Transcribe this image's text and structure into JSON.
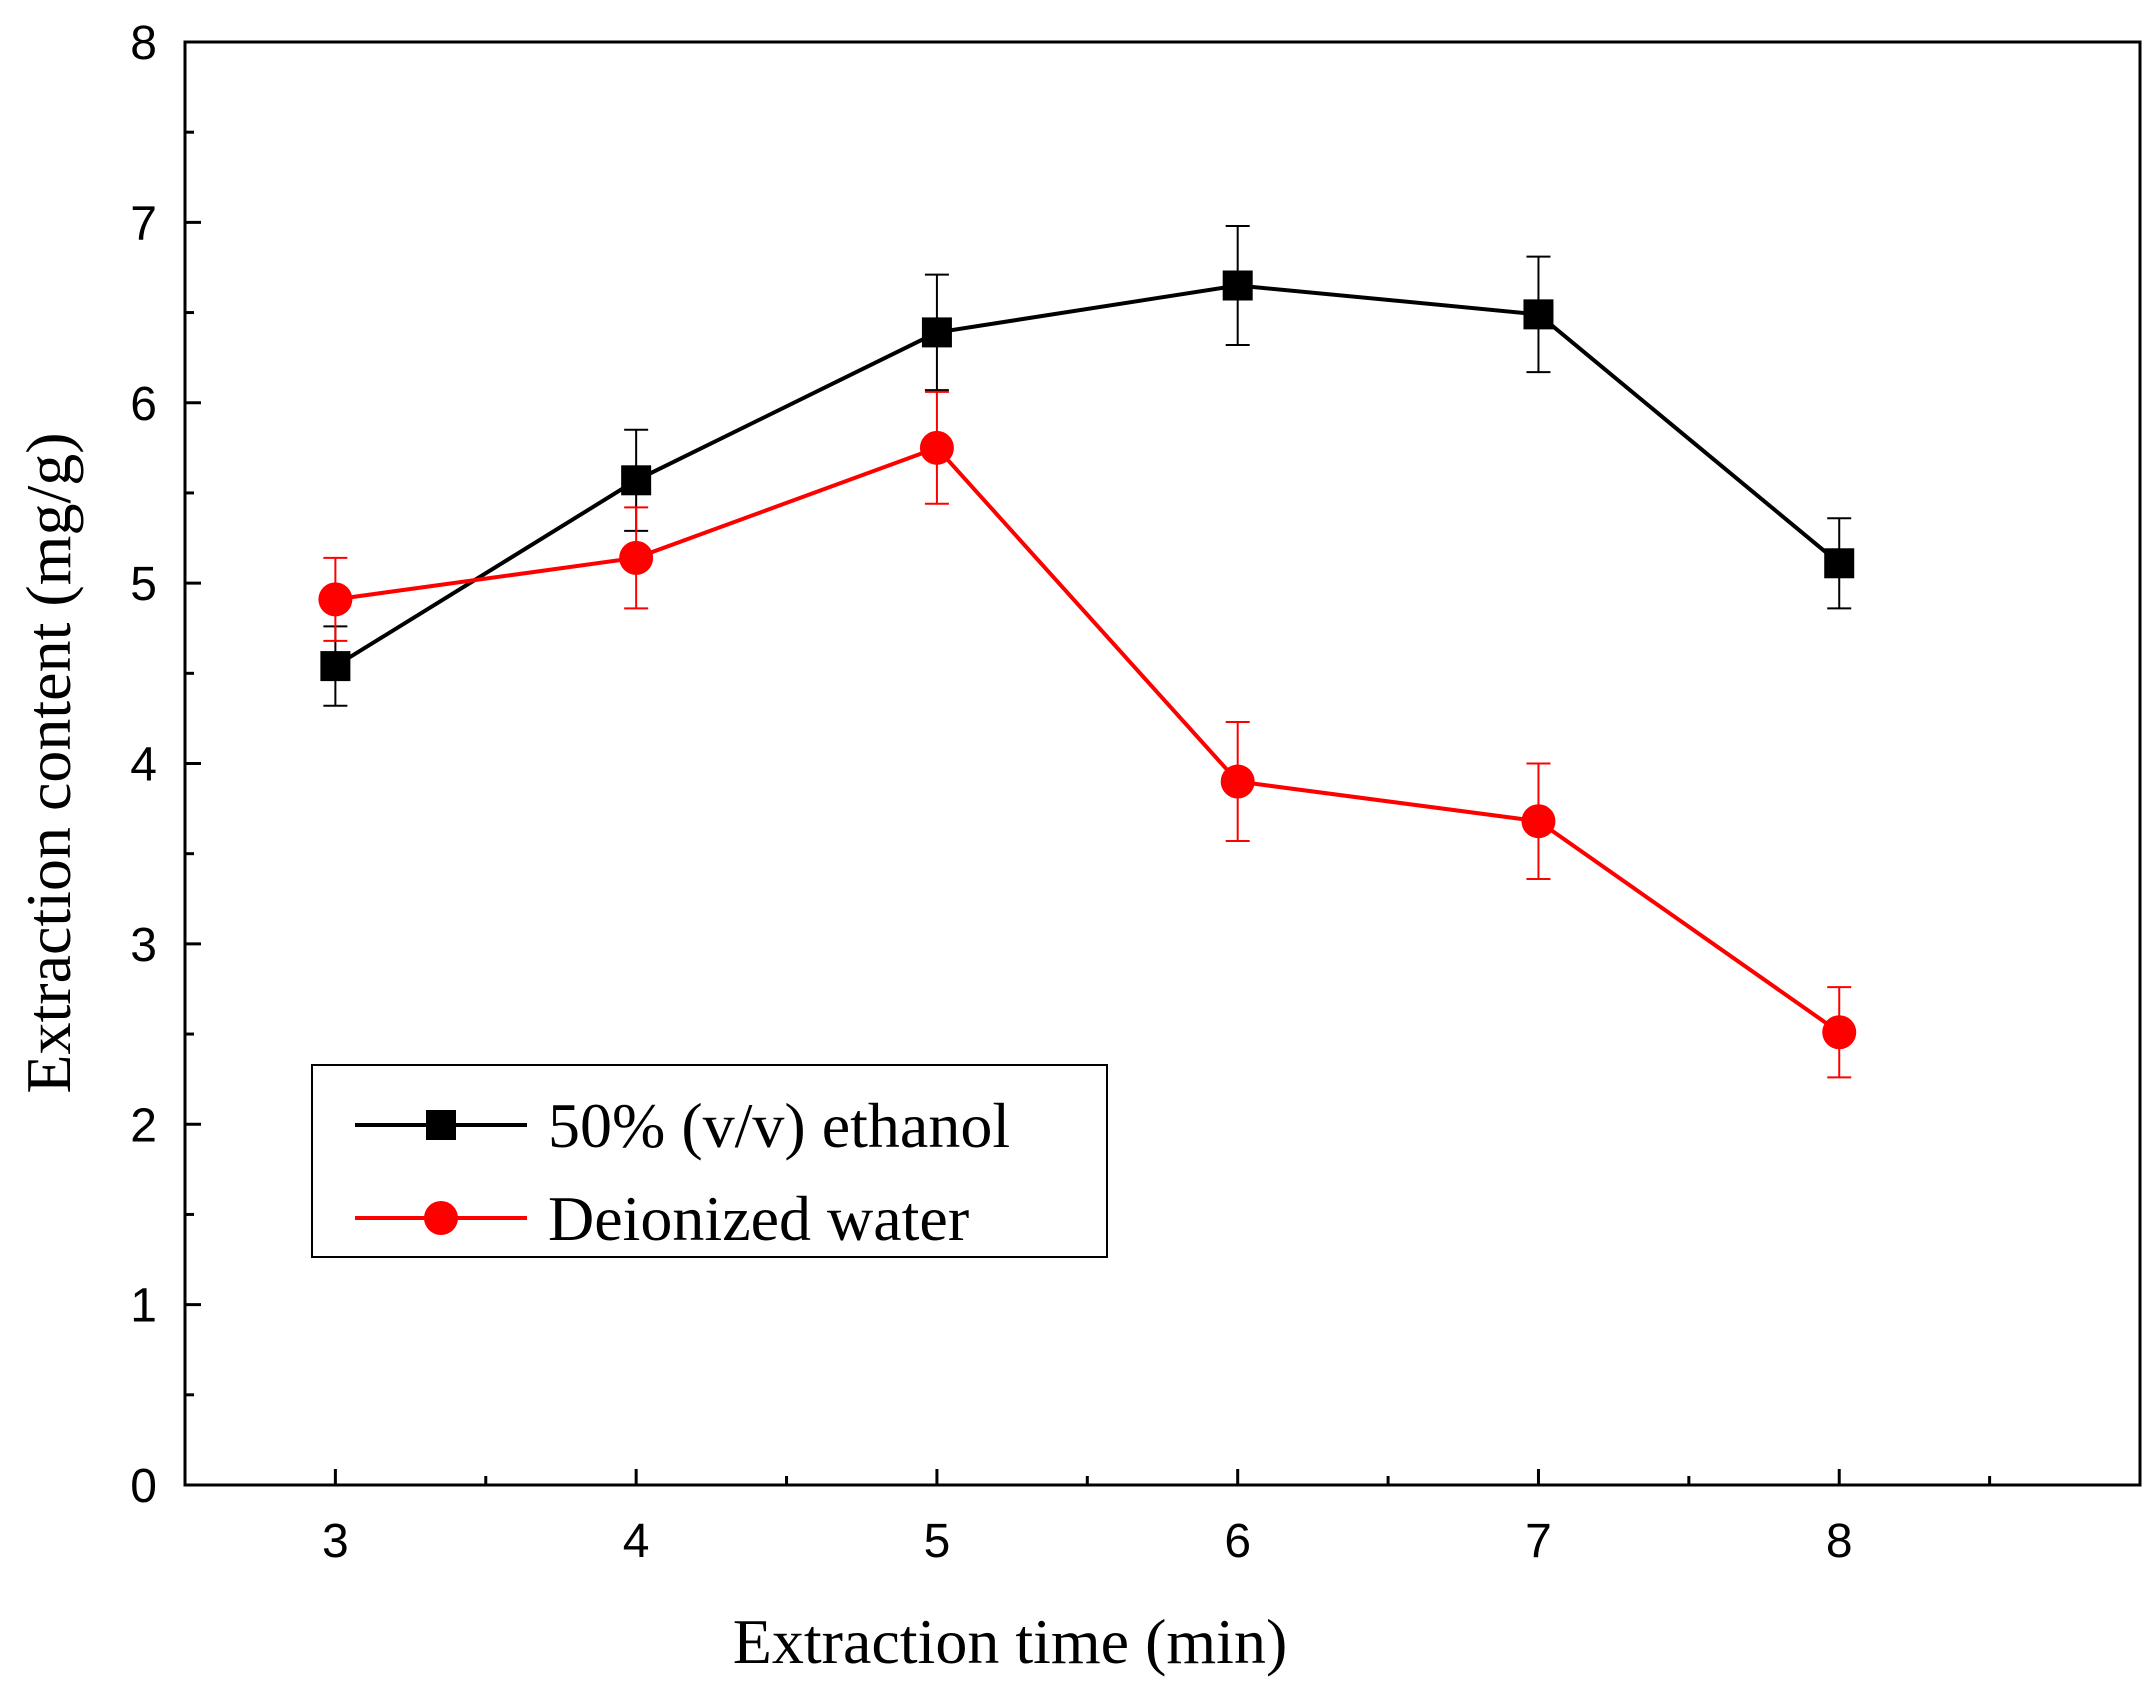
{
  "chart_data": {
    "type": "line",
    "title": "",
    "xlabel": "Extraction time (min)",
    "ylabel": "Extraction content (mg/g)",
    "xlim": [
      2.5,
      9.0
    ],
    "ylim": [
      0,
      8
    ],
    "x_ticks": [
      3,
      4,
      5,
      6,
      7,
      8
    ],
    "y_ticks": [
      0,
      1,
      2,
      3,
      4,
      5,
      6,
      7,
      8
    ],
    "x_tick_labels": [
      "3",
      "4",
      "5",
      "6",
      "7",
      "8"
    ],
    "y_tick_labels": [
      "0",
      "1",
      "2",
      "3",
      "4",
      "5",
      "6",
      "7",
      "8"
    ],
    "grid": false,
    "legend_position": "lower-left",
    "x": [
      3,
      4,
      5,
      6,
      7,
      8
    ],
    "series": [
      {
        "name": "50% (v/v) ethanol",
        "color": "#000000",
        "marker": "square",
        "values": [
          4.54,
          5.57,
          6.39,
          6.65,
          6.49,
          5.11
        ],
        "errors": [
          0.22,
          0.28,
          0.32,
          0.33,
          0.32,
          0.25
        ]
      },
      {
        "name": "Deionized water",
        "color": "#ff0000",
        "marker": "circle",
        "values": [
          4.91,
          5.14,
          5.75,
          3.9,
          3.68,
          2.51
        ],
        "errors": [
          0.23,
          0.28,
          0.31,
          0.33,
          0.32,
          0.25
        ]
      }
    ]
  }
}
